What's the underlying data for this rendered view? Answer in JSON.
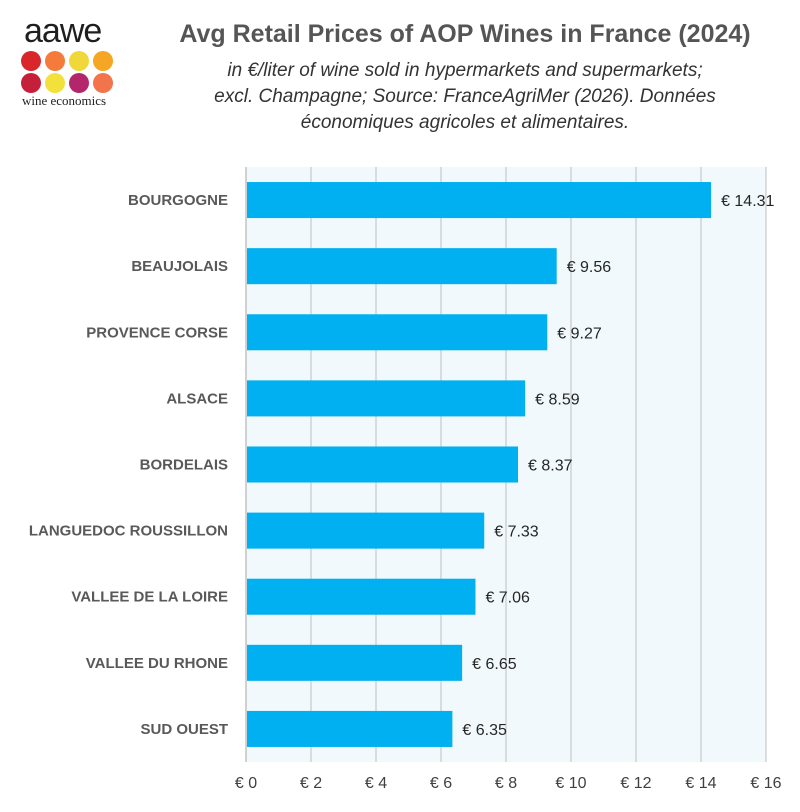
{
  "logo": {
    "word": "aawe",
    "subtitle": "wine economics",
    "dot_colors": [
      "#d8262b",
      "#f47b3c",
      "#f0d83a",
      "#f5a623",
      "#c51f3a",
      "#f2e13b",
      "#b3266b",
      "#f2744a"
    ]
  },
  "header": {
    "title": "Avg Retail Prices of AOP Wines in France (2024)",
    "subtitle_lines": [
      "in €/liter of wine sold in hypermarkets and supermarkets;",
      "excl. Champagne; Source: FranceAgriMer (2026). Données",
      "économiques agricoles et alimentaires."
    ]
  },
  "chart_data": {
    "type": "bar",
    "orientation": "horizontal",
    "categories": [
      "BOURGOGNE",
      "BEAUJOLAIS",
      "PROVENCE CORSE",
      "ALSACE",
      "BORDELAIS",
      "LANGUEDOC ROUSSILLON",
      "VALLEE DE LA LOIRE",
      "VALLEE DU RHONE",
      "SUD OUEST"
    ],
    "values": [
      14.31,
      9.56,
      9.27,
      8.59,
      8.37,
      7.33,
      7.06,
      6.65,
      6.35
    ],
    "value_labels": [
      "€ 14.31",
      "€ 9.56",
      "€ 9.27",
      "€ 8.59",
      "€ 8.37",
      "€ 7.33",
      "€ 7.06",
      "€ 6.65",
      "€ 6.35"
    ],
    "xlim": [
      0,
      16
    ],
    "ticks": [
      0,
      2,
      4,
      6,
      8,
      10,
      12,
      14,
      16
    ],
    "tick_labels": [
      "€ 0",
      "€ 2",
      "€ 4",
      "€ 6",
      "€ 8",
      "€ 10",
      "€ 12",
      "€ 14",
      "€ 16"
    ],
    "grid": true,
    "colors": {
      "bar": "#00b0f0",
      "plot_background": "#f1f9fc",
      "grid": "#bfbfbf"
    }
  }
}
